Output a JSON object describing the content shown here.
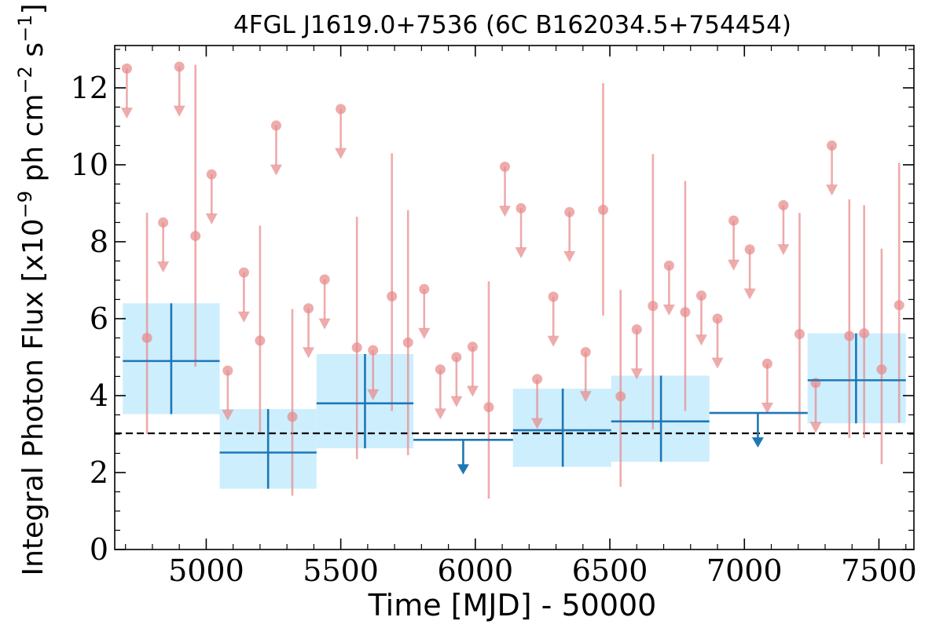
{
  "chart_data": {
    "type": "scatter",
    "title": "4FGL J1619.0+7536 (6C B162034.5+754454)",
    "xlabel": "Time [MJD] - 50000",
    "ylabel_parts": [
      "Integral Photon Flux [x10",
      "−9",
      " ph cm",
      "−2",
      " s",
      "−1",
      "]"
    ],
    "xlim": [
      4660,
      7630
    ],
    "ylim": [
      0,
      13.1
    ],
    "x_ticks": [
      5000,
      5500,
      6000,
      6500,
      7000,
      7500
    ],
    "x_tick_labels": [
      "5000",
      "5500",
      "6000",
      "6500",
      "7000",
      "7500"
    ],
    "y_ticks": [
      0,
      2,
      4,
      6,
      8,
      10,
      12
    ],
    "y_tick_labels": [
      "0",
      "2",
      "4",
      "6",
      "8",
      "10",
      "12"
    ],
    "reference_level": 3.02,
    "colors": {
      "fine_bins": "#e88a8a",
      "coarse_bins": "#1f77b4",
      "coarse_band": "#cdeefd",
      "reference": "#000000"
    },
    "fine_bins": [
      {
        "x": 4705,
        "y": 12.5,
        "ul": true
      },
      {
        "x": 4780,
        "y": 5.5,
        "lo": 3.0,
        "hi": 8.75
      },
      {
        "x": 4840,
        "y": 8.5,
        "ul": true
      },
      {
        "x": 4900,
        "y": 12.55,
        "ul": true
      },
      {
        "x": 4960,
        "y": 8.15,
        "lo": 4.75,
        "hi": 12.6
      },
      {
        "x": 5020,
        "y": 9.75,
        "ul": true
      },
      {
        "x": 5080,
        "y": 4.65,
        "ul": true
      },
      {
        "x": 5140,
        "y": 7.2,
        "ul": true
      },
      {
        "x": 5200,
        "y": 5.43,
        "lo": 3.05,
        "hi": 8.42
      },
      {
        "x": 5260,
        "y": 11.02,
        "ul": true
      },
      {
        "x": 5320,
        "y": 3.45,
        "lo": 1.4,
        "hi": 6.25
      },
      {
        "x": 5380,
        "y": 6.27,
        "ul": true
      },
      {
        "x": 5440,
        "y": 7.02,
        "ul": true
      },
      {
        "x": 5500,
        "y": 11.45,
        "ul": true
      },
      {
        "x": 5560,
        "y": 5.25,
        "lo": 2.35,
        "hi": 8.65
      },
      {
        "x": 5620,
        "y": 5.18,
        "ul": true
      },
      {
        "x": 5690,
        "y": 6.58,
        "lo": 3.6,
        "hi": 10.3
      },
      {
        "x": 5750,
        "y": 5.38,
        "lo": 2.45,
        "hi": 8.82
      },
      {
        "x": 5810,
        "y": 6.77,
        "ul": true
      },
      {
        "x": 5870,
        "y": 4.68,
        "ul": true
      },
      {
        "x": 5930,
        "y": 5.0,
        "ul": true
      },
      {
        "x": 5990,
        "y": 5.27,
        "ul": true
      },
      {
        "x": 6050,
        "y": 3.7,
        "lo": 1.32,
        "hi": 6.97
      },
      {
        "x": 6110,
        "y": 9.95,
        "ul": true
      },
      {
        "x": 6170,
        "y": 8.87,
        "ul": true
      },
      {
        "x": 6230,
        "y": 4.43,
        "ul": true
      },
      {
        "x": 6290,
        "y": 6.57,
        "ul": true
      },
      {
        "x": 6350,
        "y": 8.77,
        "ul": true
      },
      {
        "x": 6410,
        "y": 5.13,
        "ul": true
      },
      {
        "x": 6475,
        "y": 8.83,
        "lo": 6.08,
        "hi": 12.12
      },
      {
        "x": 6540,
        "y": 3.98,
        "lo": 1.63,
        "hi": 6.75
      },
      {
        "x": 6600,
        "y": 5.72,
        "ul": true
      },
      {
        "x": 6660,
        "y": 6.33,
        "lo": 3.12,
        "hi": 10.28
      },
      {
        "x": 6720,
        "y": 7.38,
        "ul": true
      },
      {
        "x": 6780,
        "y": 6.17,
        "lo": 3.6,
        "hi": 9.58
      },
      {
        "x": 6840,
        "y": 6.6,
        "ul": true
      },
      {
        "x": 6900,
        "y": 6.0,
        "ul": true
      },
      {
        "x": 6960,
        "y": 8.55,
        "ul": true
      },
      {
        "x": 7020,
        "y": 7.8,
        "ul": true
      },
      {
        "x": 7085,
        "y": 4.83,
        "ul": true
      },
      {
        "x": 7145,
        "y": 8.95,
        "ul": true
      },
      {
        "x": 7205,
        "y": 5.6,
        "lo": 3.05,
        "hi": 8.75
      },
      {
        "x": 7265,
        "y": 4.33,
        "ul": true
      },
      {
        "x": 7325,
        "y": 10.5,
        "ul": true
      },
      {
        "x": 7390,
        "y": 5.55,
        "lo": 2.9,
        "hi": 9.1
      },
      {
        "x": 7445,
        "y": 5.62,
        "lo": 2.9,
        "hi": 8.95
      },
      {
        "x": 7510,
        "y": 4.68,
        "lo": 2.22,
        "hi": 7.82
      },
      {
        "x": 7575,
        "y": 6.35,
        "lo": 3.3,
        "hi": 10.05
      }
    ],
    "coarse_bins": [
      {
        "x": 4870,
        "xlo": 4690,
        "xhi": 5050,
        "y": 4.9,
        "lo": 3.52,
        "hi": 6.4
      },
      {
        "x": 5230,
        "xlo": 5050,
        "xhi": 5410,
        "y": 2.52,
        "lo": 1.58,
        "hi": 3.65
      },
      {
        "x": 5590,
        "xlo": 5410,
        "xhi": 5770,
        "y": 3.8,
        "lo": 2.63,
        "hi": 5.08
      },
      {
        "x": 5955,
        "xlo": 5770,
        "xhi": 6140,
        "y": 2.85,
        "ul": true
      },
      {
        "x": 6325,
        "xlo": 6140,
        "xhi": 6505,
        "y": 3.1,
        "lo": 2.15,
        "hi": 4.18
      },
      {
        "x": 6690,
        "xlo": 6505,
        "xhi": 6870,
        "y": 3.33,
        "lo": 2.28,
        "hi": 4.52
      },
      {
        "x": 7050,
        "xlo": 6870,
        "xhi": 7235,
        "y": 3.55,
        "ul": true
      },
      {
        "x": 7415,
        "xlo": 7235,
        "xhi": 7600,
        "y": 4.4,
        "lo": 3.28,
        "hi": 5.62
      }
    ]
  }
}
